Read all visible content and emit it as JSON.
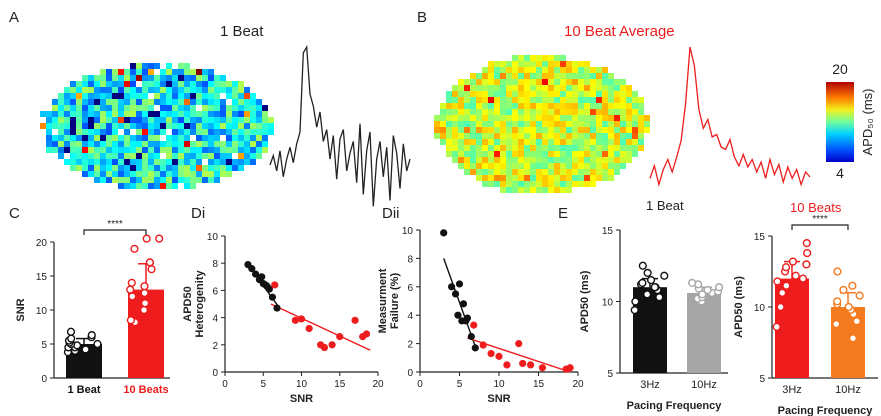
{
  "panel_letters": {
    "a": "A",
    "b": "B",
    "c": "C",
    "di": "Di",
    "dii": "Dii",
    "e": "E"
  },
  "colors": {
    "black": "#111111",
    "red": "#ee1c1c",
    "grey": "#a6a6a7",
    "orange": "#f47a20",
    "map_blue": "#2a5cd6",
    "map_low": "#0000c8",
    "map_high": "#b00000"
  },
  "chart_data": [
    {
      "id": "A",
      "type": "heatmap-trace",
      "title": "1 Beat",
      "trace": [
        0.0,
        0.08,
        -0.05,
        0.12,
        -0.1,
        0.05,
        0.15,
        0.02,
        0.18,
        0.28,
        0.95,
        1.0,
        0.6,
        0.5,
        0.32,
        0.45,
        0.2,
        0.3,
        0.05,
        0.25,
        -0.12,
        0.22,
        0.3,
        -0.05,
        0.1,
        0.2,
        -0.15,
        0.35,
        -0.25,
        0.12,
        0.28,
        -0.35,
        0.05,
        0.2,
        -0.1,
        0.15,
        -0.3,
        0.25,
        0.1,
        -0.2,
        0.18,
        -0.05,
        0.05
      ]
    },
    {
      "id": "B",
      "type": "heatmap-trace",
      "title": "10 Beat Average",
      "trace": [
        -0.05,
        0.05,
        -0.1,
        0.02,
        0.1,
        0.0,
        0.12,
        0.25,
        0.55,
        1.0,
        0.85,
        0.5,
        0.35,
        0.42,
        0.28,
        0.3,
        0.2,
        0.18,
        0.26,
        0.12,
        0.05,
        0.14,
        0.04,
        0.1,
        0.0,
        0.08,
        -0.05,
        0.1,
        -0.02,
        0.06,
        -0.08,
        0.04,
        -0.05,
        0.02,
        -0.1,
        0.0,
        -0.04
      ],
      "colorbar": {
        "max": "20",
        "min": "4",
        "label": "APD₅₀ (ms)"
      }
    },
    {
      "id": "C",
      "type": "bar",
      "categories": [
        "1 Beat",
        "10 Beats"
      ],
      "values": [
        5.0,
        13.0
      ],
      "errors": [
        0.8,
        3.8
      ],
      "points": [
        [
          3.8,
          4.0,
          4.2,
          4.5,
          4.5,
          4.8,
          5.0,
          5.0,
          5.2,
          5.5,
          5.8,
          6.0,
          6.3,
          6.8
        ],
        [
          8.2,
          8.5,
          10.0,
          11.0,
          12.0,
          12.5,
          13.0,
          13.5,
          14.0,
          16.0,
          17.0,
          19.0,
          20.5,
          20.5
        ]
      ],
      "ylabel": "SNR",
      "ylim": [
        0,
        20
      ],
      "yticks": [
        "0",
        "5",
        "10",
        "15",
        "20"
      ],
      "significance": "****"
    },
    {
      "id": "Di",
      "type": "scatter",
      "xlabel": "SNR",
      "ylabel_lines": [
        "APD50",
        "Heterogenity"
      ],
      "xlim": [
        0,
        20
      ],
      "ylim": [
        0,
        10
      ],
      "xticks": [
        "0",
        "5",
        "10",
        "15",
        "20"
      ],
      "yticks": [
        "0",
        "2",
        "4",
        "6",
        "8",
        "10"
      ],
      "series": [
        {
          "color": "black",
          "x": [
            3.0,
            3.5,
            4.0,
            4.5,
            4.8,
            5.0,
            5.3,
            5.5,
            5.8,
            6.2,
            6.8
          ],
          "y": [
            7.9,
            7.6,
            7.2,
            6.8,
            7.0,
            6.5,
            6.4,
            6.3,
            6.1,
            5.5,
            4.7
          ]
        },
        {
          "color": "red",
          "x": [
            6.5,
            9.2,
            10.0,
            11.0,
            12.5,
            13.0,
            14.0,
            15.0,
            17.0,
            18.0,
            18.5
          ],
          "y": [
            6.4,
            3.8,
            3.9,
            3.2,
            2.0,
            1.8,
            2.0,
            2.6,
            3.8,
            2.6,
            2.8
          ]
        }
      ],
      "fits": [
        {
          "color": "black",
          "x": [
            3,
            7
          ],
          "y": [
            7.9,
            4.8
          ]
        },
        {
          "color": "red",
          "x": [
            6,
            19
          ],
          "y": [
            5.0,
            1.6
          ]
        }
      ]
    },
    {
      "id": "Dii",
      "type": "scatter",
      "xlabel": "SNR",
      "ylabel_lines": [
        "Measurment",
        "Failure (%)"
      ],
      "xlim": [
        0,
        20
      ],
      "ylim": [
        0,
        10
      ],
      "xticks": [
        "0",
        "5",
        "10",
        "15",
        "20"
      ],
      "yticks": [
        "0",
        "2",
        "4",
        "6",
        "8",
        "10"
      ],
      "series": [
        {
          "color": "black",
          "x": [
            3.0,
            4.0,
            4.5,
            4.8,
            5.0,
            5.3,
            5.5,
            5.8,
            6.0,
            6.5,
            7.0
          ],
          "y": [
            9.8,
            6.0,
            5.5,
            4.0,
            6.2,
            3.6,
            4.8,
            3.6,
            3.8,
            2.5,
            1.7
          ]
        },
        {
          "color": "red",
          "x": [
            6.8,
            8.0,
            9.0,
            10.0,
            11.0,
            12.5,
            13.0,
            14.0,
            15.5,
            18.5,
            19.0
          ],
          "y": [
            3.3,
            1.9,
            1.3,
            1.1,
            0.5,
            2.0,
            0.6,
            0.5,
            0.3,
            0.2,
            0.3
          ]
        }
      ],
      "fits": [
        {
          "color": "black",
          "x": [
            3,
            7
          ],
          "y": [
            8.0,
            1.8
          ]
        },
        {
          "color": "red",
          "x": [
            6,
            19
          ],
          "y": [
            2.4,
            0.0
          ]
        }
      ]
    },
    {
      "id": "E1",
      "type": "bar",
      "categories": [
        "3Hz",
        "10Hz"
      ],
      "values": [
        11.0,
        10.6
      ],
      "errors": [
        0.6,
        0.4
      ],
      "colors": [
        "black",
        "grey"
      ],
      "points": [
        [
          9.4,
          10.0,
          10.3,
          10.5,
          10.8,
          11.0,
          11.0,
          11.2,
          11.3,
          11.5,
          11.8,
          12.0,
          12.5
        ],
        [
          10.0,
          10.2,
          10.3,
          10.5,
          10.6,
          10.7,
          10.8,
          10.9,
          11.0,
          11.2,
          11.3
        ]
      ],
      "ylabel": "APD50 (ms)",
      "ylim": [
        5,
        15
      ],
      "yticks": [
        "5",
        "10",
        "15"
      ],
      "xlabel": "Pacing Frequency"
    },
    {
      "id": "E2",
      "type": "bar",
      "title": "10 Beats",
      "title_prefix": "1 Beat",
      "categories": [
        "3Hz",
        "10Hz"
      ],
      "values": [
        12.0,
        10.0
      ],
      "errors": [
        1.2,
        1.0
      ],
      "colors": [
        "red",
        "orange"
      ],
      "points": [
        [
          8.6,
          10.0,
          11.0,
          11.5,
          11.8,
          12.0,
          12.2,
          12.5,
          12.8,
          13.0,
          13.2,
          13.8,
          14.5
        ],
        [
          7.8,
          8.8,
          9.0,
          9.5,
          9.8,
          10.0,
          10.2,
          10.4,
          10.8,
          11.2,
          11.5,
          12.5
        ]
      ],
      "ylabel": "APD50 (ms)",
      "ylim": [
        5,
        15
      ],
      "yticks": [
        "5",
        "10",
        "15"
      ],
      "xlabel": "Pacing Frequency",
      "significance": "****"
    }
  ]
}
